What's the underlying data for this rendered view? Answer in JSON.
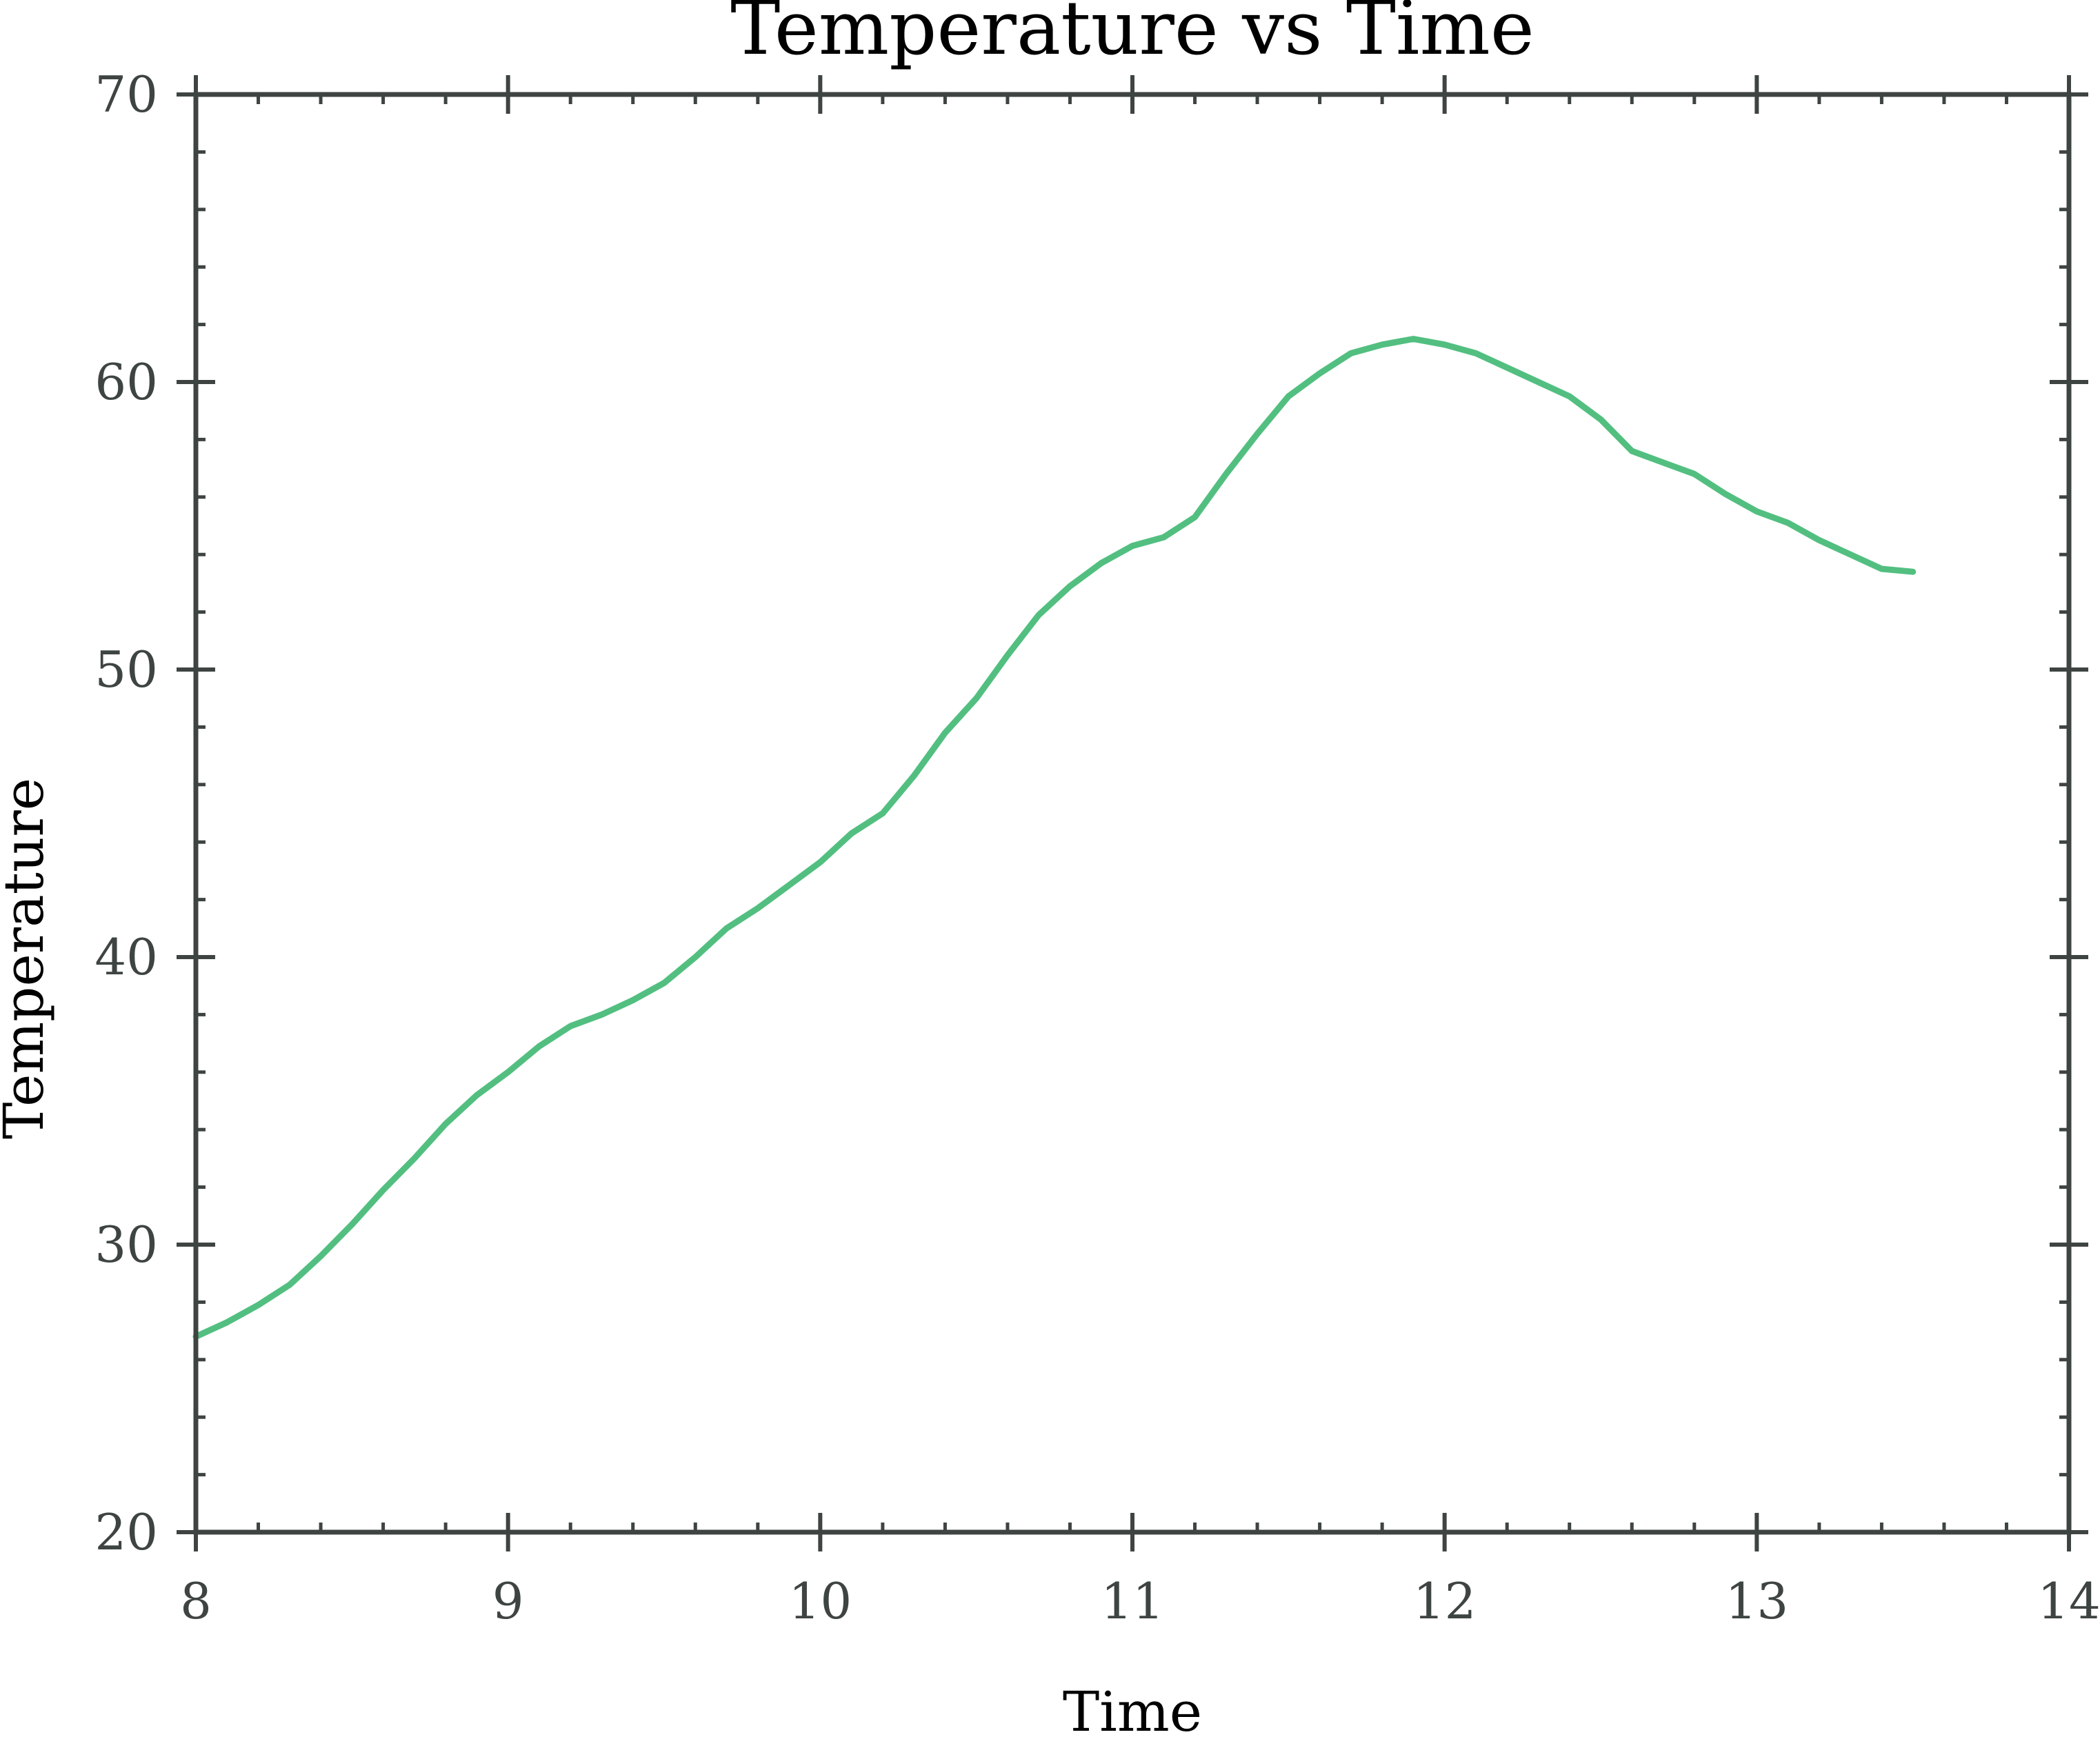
{
  "chart_data": {
    "type": "line",
    "title": "Temperature vs Time",
    "xlabel": "Time",
    "ylabel": "Temperature",
    "xlim": [
      8,
      14
    ],
    "ylim": [
      20,
      70
    ],
    "x_ticks": [
      8,
      9,
      10,
      11,
      12,
      13,
      14
    ],
    "y_ticks": [
      20,
      30,
      40,
      50,
      60,
      70
    ],
    "x_tick_labels": [
      "8",
      "9",
      "10",
      "11",
      "12",
      "13",
      "14"
    ],
    "y_tick_labels": [
      "20",
      "30",
      "40",
      "50",
      "60",
      "70"
    ],
    "x_minor_step": 0.2,
    "y_minor_step": 2,
    "grid": false,
    "legend": "none",
    "colors": {
      "line": "#52bf80",
      "axes": "#3e4442"
    },
    "series": [
      {
        "x": [
          8.0,
          8.1,
          8.2,
          8.3,
          8.4,
          8.5,
          8.6,
          8.7,
          8.8,
          8.9,
          9.0,
          9.1,
          9.2,
          9.3,
          9.4,
          9.5,
          9.6,
          9.7,
          9.8,
          9.9,
          10.0,
          10.1,
          10.2,
          10.3,
          10.4,
          10.5,
          10.6,
          10.7,
          10.8,
          10.9,
          11.0,
          11.1,
          11.2,
          11.3,
          11.4,
          11.5,
          11.6,
          11.7,
          11.8,
          11.9,
          12.0,
          12.1,
          12.2,
          12.3,
          12.4,
          12.5,
          12.6,
          12.7,
          12.8,
          12.9,
          13.0,
          13.1,
          13.2,
          13.3,
          13.4,
          13.5
        ],
        "y": [
          26.8,
          27.3,
          27.9,
          28.6,
          29.6,
          30.7,
          31.9,
          33.0,
          34.2,
          35.2,
          36.0,
          36.9,
          37.6,
          38.0,
          38.5,
          39.1,
          40.0,
          41.0,
          41.7,
          42.5,
          43.3,
          44.3,
          45.0,
          46.3,
          47.8,
          49.0,
          50.5,
          51.9,
          52.9,
          53.7,
          54.3,
          54.6,
          55.3,
          56.8,
          58.2,
          59.5,
          60.3,
          61.0,
          61.3,
          61.5,
          61.3,
          61.0,
          60.5,
          60.0,
          59.5,
          58.7,
          57.6,
          57.2,
          56.8,
          56.1,
          55.5,
          55.1,
          54.5,
          54.0,
          53.5,
          53.4
        ]
      }
    ]
  }
}
